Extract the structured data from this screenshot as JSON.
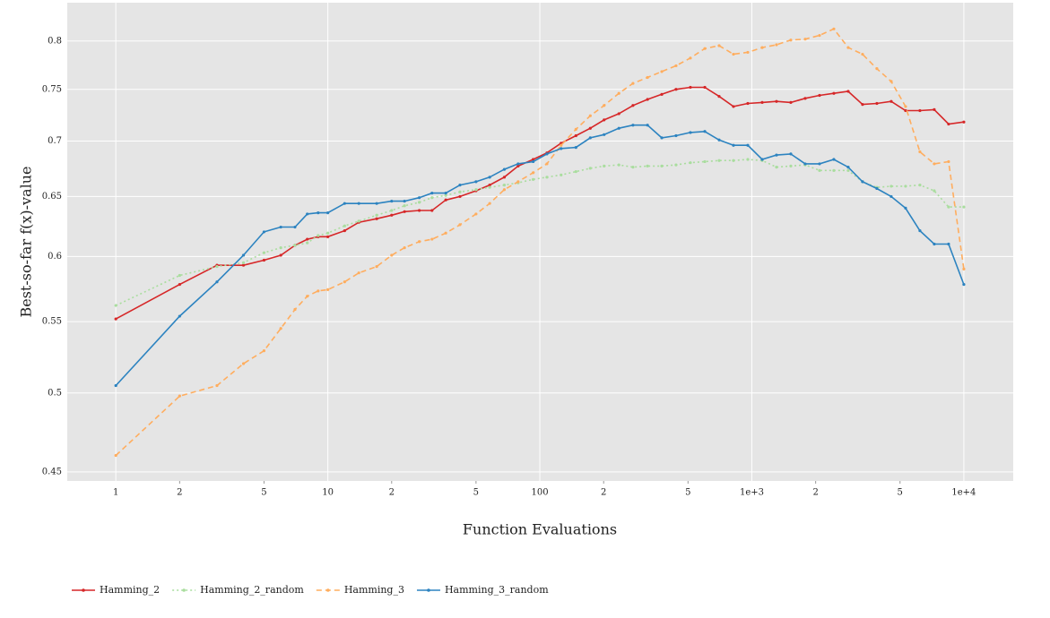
{
  "chart_data": {
    "type": "line",
    "xlabel": "Function Evaluations",
    "ylabel": "Best-so-far f(x)-value",
    "xscale": "log",
    "yscale": "log",
    "grid": true,
    "legend": "bottom-left",
    "xlim": [
      0.59,
      17100
    ],
    "ylim": [
      0.4446,
      0.842
    ],
    "xticks": [
      1,
      2,
      5,
      10,
      {
        "value": 20,
        "label": "2"
      },
      {
        "value": 50,
        "label": "5"
      },
      100,
      {
        "value": 200,
        "label": "2"
      },
      {
        "value": 500,
        "label": "5"
      },
      {
        "value": 1000,
        "label": "1e+3"
      },
      {
        "value": 2000,
        "label": "2"
      },
      {
        "value": 5000,
        "label": "5"
      },
      {
        "value": 10000,
        "label": "1e+4"
      }
    ],
    "yticks": [
      0.45,
      0.5,
      0.55,
      0.6,
      0.65,
      0.7,
      0.75,
      0.8
    ],
    "x": [
      1,
      2,
      3,
      4,
      5,
      6,
      7,
      8,
      9,
      10,
      12,
      14,
      17,
      20,
      23,
      27,
      31,
      36,
      42,
      50,
      58,
      68,
      79,
      93,
      108,
      126,
      148,
      173,
      201,
      236,
      275,
      322,
      376,
      439,
      513,
      600,
      701,
      819,
      957,
      1119,
      1307,
      1527,
      1785,
      2086,
      2437,
      2848,
      3328,
      3889,
      4545,
      5311,
      6206,
      7252,
      8474,
      10000
    ],
    "series": [
      {
        "name": "Hamming_2",
        "color": "#d62728",
        "dash": "solid",
        "values": [
          0.552,
          0.578,
          0.593,
          0.593,
          0.597,
          0.601,
          0.609,
          0.614,
          0.616,
          0.616,
          0.621,
          0.628,
          0.631,
          0.634,
          0.637,
          0.638,
          0.638,
          0.647,
          0.65,
          0.655,
          0.66,
          0.667,
          0.677,
          0.683,
          0.689,
          0.698,
          0.705,
          0.712,
          0.72,
          0.726,
          0.734,
          0.74,
          0.745,
          0.75,
          0.752,
          0.752,
          0.743,
          0.733,
          0.736,
          0.737,
          0.738,
          0.737,
          0.741,
          0.744,
          0.746,
          0.748,
          0.735,
          0.736,
          0.738,
          0.729,
          0.729,
          0.73,
          0.716,
          0.718
        ]
      },
      {
        "name": "Hamming_2_random",
        "color": "#a9dd9e",
        "dash": "dotted",
        "values": [
          0.562,
          0.585,
          0.592,
          0.595,
          0.603,
          0.607,
          0.609,
          0.611,
          0.617,
          0.619,
          0.625,
          0.629,
          0.634,
          0.638,
          0.642,
          0.645,
          0.649,
          0.651,
          0.654,
          0.656,
          0.658,
          0.66,
          0.662,
          0.665,
          0.667,
          0.669,
          0.672,
          0.675,
          0.677,
          0.678,
          0.676,
          0.677,
          0.677,
          0.678,
          0.68,
          0.681,
          0.682,
          0.682,
          0.683,
          0.682,
          0.676,
          0.677,
          0.678,
          0.673,
          0.673,
          0.673,
          0.663,
          0.658,
          0.659,
          0.659,
          0.66,
          0.655,
          0.641,
          0.641
        ]
      },
      {
        "name": "Hamming_3",
        "color": "#ffad5e",
        "dash": "dashed",
        "values": [
          0.46,
          0.498,
          0.505,
          0.52,
          0.529,
          0.545,
          0.559,
          0.569,
          0.573,
          0.574,
          0.58,
          0.587,
          0.592,
          0.601,
          0.607,
          0.612,
          0.614,
          0.619,
          0.626,
          0.635,
          0.644,
          0.656,
          0.663,
          0.671,
          0.679,
          0.696,
          0.711,
          0.724,
          0.734,
          0.746,
          0.756,
          0.762,
          0.768,
          0.774,
          0.782,
          0.792,
          0.795,
          0.786,
          0.788,
          0.793,
          0.796,
          0.801,
          0.802,
          0.806,
          0.813,
          0.793,
          0.786,
          0.771,
          0.758,
          0.733,
          0.69,
          0.679,
          0.681,
          0.59
        ]
      },
      {
        "name": "Hamming_3_random",
        "color": "#2c83c0",
        "dash": "solid",
        "values": [
          0.505,
          0.554,
          0.58,
          0.601,
          0.62,
          0.624,
          0.624,
          0.635,
          0.636,
          0.636,
          0.644,
          0.644,
          0.644,
          0.646,
          0.646,
          0.649,
          0.653,
          0.653,
          0.66,
          0.663,
          0.667,
          0.674,
          0.679,
          0.681,
          0.688,
          0.693,
          0.694,
          0.703,
          0.706,
          0.712,
          0.715,
          0.715,
          0.703,
          0.705,
          0.708,
          0.709,
          0.701,
          0.696,
          0.696,
          0.683,
          0.687,
          0.688,
          0.679,
          0.679,
          0.683,
          0.676,
          0.663,
          0.657,
          0.65,
          0.64,
          0.621,
          0.61,
          0.61,
          0.578
        ]
      }
    ]
  }
}
